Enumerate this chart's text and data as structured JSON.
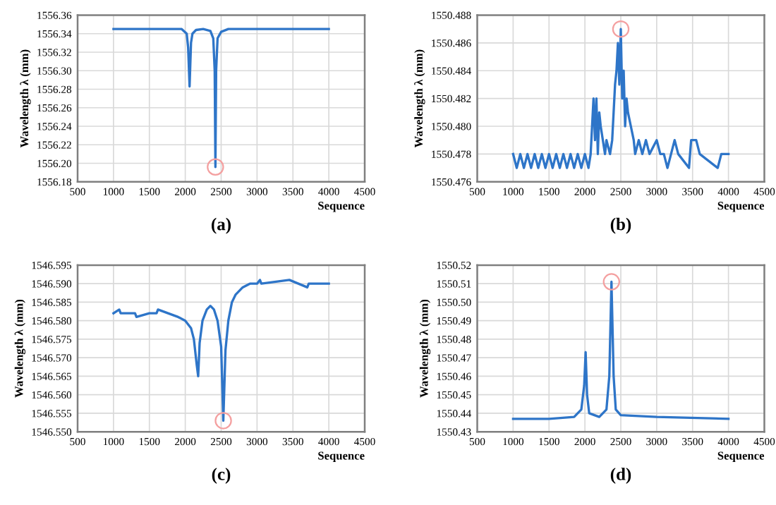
{
  "chart_data": [
    {
      "type": "line",
      "title": "(a)",
      "xlabel": "Sequence",
      "ylabel": "Wavelength λ (mm)",
      "grid": true,
      "legend": false,
      "xlim": [
        500,
        4500
      ],
      "xticks": [
        500,
        1000,
        1500,
        2000,
        2500,
        3000,
        3500,
        4000,
        4500
      ],
      "ylim": [
        1556.18,
        1556.36
      ],
      "yticks": [
        1556.18,
        {
          "value": 1556.2,
          "label": "1556.20"
        },
        1556.22,
        1556.24,
        1556.26,
        1556.28,
        {
          "value": 1556.3,
          "label": "1556.30"
        },
        1556.32,
        1556.34,
        1556.36
      ],
      "series": [
        {
          "color": "#2e75c8",
          "x": [
            1000,
            1500,
            1950,
            2020,
            2040,
            2060,
            2080,
            2100,
            2150,
            2250,
            2350,
            2390,
            2410,
            2420,
            2430,
            2450,
            2500,
            2600,
            3000,
            3500,
            4000
          ],
          "values": [
            1556.345,
            1556.345,
            1556.345,
            1556.34,
            1556.325,
            1556.283,
            1556.33,
            1556.34,
            1556.344,
            1556.345,
            1556.343,
            1556.335,
            1556.3,
            1556.196,
            1556.3,
            1556.335,
            1556.342,
            1556.345,
            1556.345,
            1556.345,
            1556.345
          ]
        }
      ]
    },
    {
      "type": "line",
      "title": "(b)",
      "xlabel": "Sequence",
      "ylabel": "Wavelength λ (mm)",
      "grid": true,
      "legend": false,
      "xlim": [
        500,
        4500
      ],
      "xticks": [
        500,
        1000,
        1500,
        2000,
        2500,
        3000,
        3500,
        4000,
        4500
      ],
      "ylim": [
        1550.476,
        1550.488
      ],
      "yticks": [
        1550.476,
        1550.478,
        {
          "value": 1550.48,
          "label": "1550.480"
        },
        1550.482,
        1550.484,
        1550.486,
        1550.488
      ],
      "series": [
        {
          "color": "#2e75c8",
          "x": [
            1000,
            1050,
            1100,
            1150,
            1200,
            1250,
            1300,
            1350,
            1400,
            1450,
            1500,
            1550,
            1600,
            1650,
            1700,
            1750,
            1800,
            1850,
            1900,
            1950,
            2000,
            2050,
            2080,
            2100,
            2120,
            2140,
            2160,
            2180,
            2200,
            2220,
            2250,
            2280,
            2300,
            2350,
            2380,
            2400,
            2420,
            2440,
            2460,
            2480,
            2500,
            2520,
            2540,
            2560,
            2580,
            2600,
            2640,
            2680,
            2700,
            2750,
            2800,
            2850,
            2900,
            3000,
            3050,
            3100,
            3150,
            3200,
            3250,
            3300,
            3450,
            3480,
            3550,
            3600,
            3850,
            3900,
            4000
          ],
          "values": [
            1550.478,
            1550.477,
            1550.478,
            1550.477,
            1550.478,
            1550.477,
            1550.478,
            1550.477,
            1550.478,
            1550.477,
            1550.478,
            1550.477,
            1550.478,
            1550.477,
            1550.478,
            1550.477,
            1550.478,
            1550.477,
            1550.478,
            1550.477,
            1550.478,
            1550.477,
            1550.478,
            1550.48,
            1550.482,
            1550.479,
            1550.482,
            1550.478,
            1550.481,
            1550.48,
            1550.479,
            1550.478,
            1550.479,
            1550.478,
            1550.479,
            1550.481,
            1550.483,
            1550.484,
            1550.486,
            1550.483,
            1550.487,
            1550.482,
            1550.484,
            1550.48,
            1550.482,
            1550.481,
            1550.48,
            1550.479,
            1550.478,
            1550.479,
            1550.478,
            1550.479,
            1550.478,
            1550.479,
            1550.478,
            1550.478,
            1550.477,
            1550.478,
            1550.479,
            1550.478,
            1550.477,
            1550.479,
            1550.479,
            1550.478,
            1550.477,
            1550.478,
            1550.478
          ]
        }
      ]
    },
    {
      "type": "line",
      "title": "(c)",
      "xlabel": "Sequence",
      "ylabel": "Wavelength λ (mm)",
      "grid": true,
      "legend": false,
      "xlim": [
        500,
        4500
      ],
      "xticks": [
        500,
        1000,
        1500,
        2000,
        2500,
        3000,
        3500,
        4000,
        4500
      ],
      "ylim": [
        1546.55,
        1546.595
      ],
      "yticks": [
        {
          "value": 1546.55,
          "label": "1546.550"
        },
        1546.555,
        {
          "value": 1546.56,
          "label": "1546.560"
        },
        1546.565,
        {
          "value": 1546.57,
          "label": "1546.570"
        },
        1546.575,
        {
          "value": 1546.58,
          "label": "1546.580"
        },
        1546.585,
        {
          "value": 1546.59,
          "label": "1546.590"
        },
        1546.595
      ],
      "series": [
        {
          "color": "#2e75c8",
          "x": [
            1000,
            1080,
            1100,
            1300,
            1320,
            1500,
            1600,
            1620,
            1900,
            2000,
            2080,
            2120,
            2160,
            2180,
            2200,
            2240,
            2300,
            2350,
            2400,
            2450,
            2500,
            2530,
            2560,
            2600,
            2650,
            2700,
            2800,
            2900,
            3000,
            3040,
            3060,
            3450,
            3700,
            3720,
            4000
          ],
          "values": [
            1546.582,
            1546.583,
            1546.582,
            1546.582,
            1546.581,
            1546.582,
            1546.582,
            1546.583,
            1546.581,
            1546.58,
            1546.578,
            1546.575,
            1546.568,
            1546.565,
            1546.574,
            1546.58,
            1546.583,
            1546.584,
            1546.583,
            1546.58,
            1546.573,
            1546.553,
            1546.572,
            1546.58,
            1546.585,
            1546.587,
            1546.589,
            1546.59,
            1546.59,
            1546.591,
            1546.59,
            1546.591,
            1546.589,
            1546.59,
            1546.59
          ]
        }
      ]
    },
    {
      "type": "line",
      "title": "(d)",
      "xlabel": "Sequence",
      "ylabel": "Wavelength λ (mm)",
      "grid": true,
      "legend": false,
      "xlim": [
        500,
        4500
      ],
      "xticks": [
        500,
        1000,
        1500,
        2000,
        2500,
        3000,
        3500,
        4000,
        4500
      ],
      "ylim": [
        1550.43,
        1550.52
      ],
      "yticks": [
        1550.43,
        1550.44,
        1550.45,
        1550.46,
        1550.47,
        1550.48,
        1550.49,
        {
          "value": 1550.5,
          "label": "1550.50"
        },
        1550.51,
        1550.52
      ],
      "series": [
        {
          "color": "#2e75c8",
          "x": [
            1000,
            1500,
            1850,
            1950,
            1990,
            2010,
            2030,
            2060,
            2200,
            2300,
            2340,
            2370,
            2400,
            2430,
            2500,
            3000,
            4000
          ],
          "values": [
            1550.437,
            1550.437,
            1550.438,
            1550.442,
            1550.455,
            1550.473,
            1550.45,
            1550.44,
            1550.438,
            1550.442,
            1550.46,
            1550.511,
            1550.46,
            1550.442,
            1550.439,
            1550.438,
            1550.437
          ]
        }
      ]
    }
  ]
}
